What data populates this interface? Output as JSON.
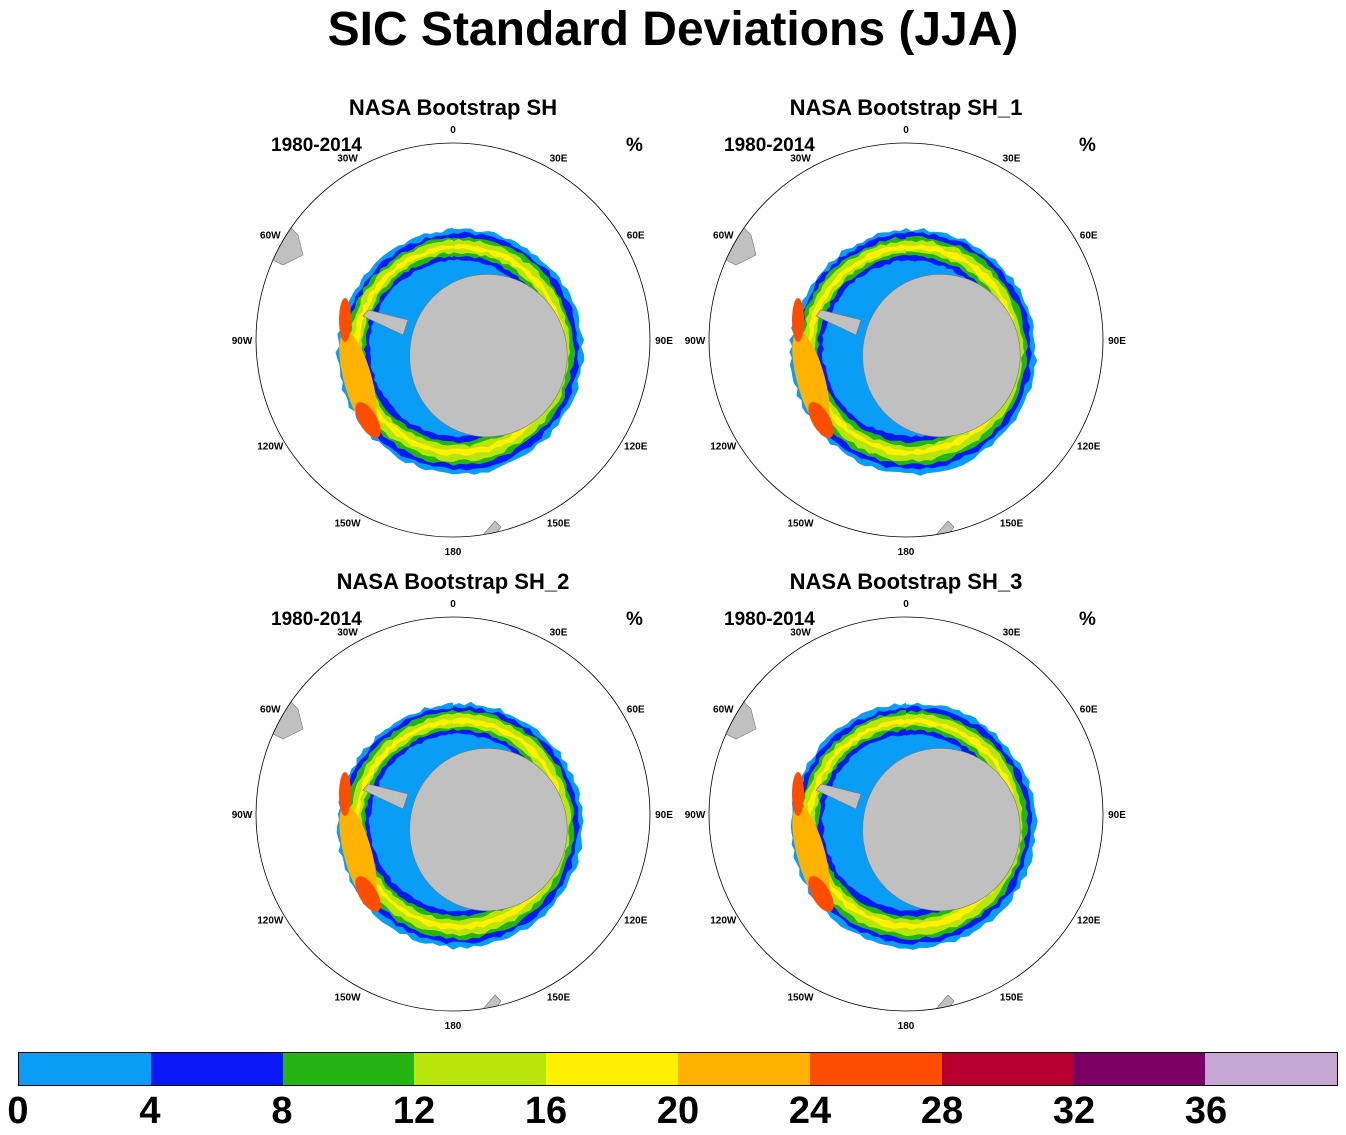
{
  "title": "SIC Standard Deviations (JJA)",
  "panels": [
    {
      "title": "NASA Bootstrap SH",
      "period": "1980-2014",
      "units": "%"
    },
    {
      "title": "NASA Bootstrap SH_1",
      "period": "1980-2014",
      "units": "%"
    },
    {
      "title": "NASA Bootstrap SH_2",
      "period": "1980-2014",
      "units": "%"
    },
    {
      "title": "NASA Bootstrap SH_3",
      "period": "1980-2014",
      "units": "%"
    }
  ],
  "longitude_labels": [
    "0",
    "30E",
    "60E",
    "90E",
    "120E",
    "150E",
    "180",
    "150W",
    "120W",
    "90W",
    "60W",
    "30W"
  ],
  "colorbar": {
    "colors": [
      "#0a9df5",
      "#0a18f7",
      "#24b513",
      "#b8e60a",
      "#fff100",
      "#ffb300",
      "#ff4d00",
      "#b8002e",
      "#7a0066",
      "#c8a6d4"
    ],
    "labels": [
      "0",
      "4",
      "8",
      "12",
      "16",
      "20",
      "24",
      "28",
      "32",
      "36"
    ]
  },
  "map_colors": {
    "land": "#c0c0c0",
    "ocean": "#ffffff"
  }
}
